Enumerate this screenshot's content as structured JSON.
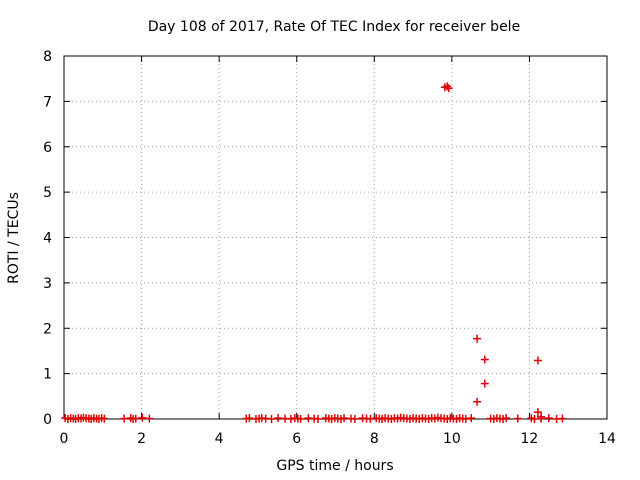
{
  "chart_data": {
    "type": "scatter",
    "title": "Day 108 of 2017, Rate Of TEC Index for receiver bele",
    "xlabel": "GPS time / hours",
    "ylabel": "ROTI / TECUs",
    "xlim": [
      0,
      14
    ],
    "ylim": [
      0,
      8
    ],
    "xticks": [
      "0",
      "2",
      "4",
      "6",
      "8",
      "10",
      "12",
      "14"
    ],
    "yticks": [
      "0",
      "1",
      "2",
      "3",
      "4",
      "5",
      "6",
      "7",
      "8"
    ],
    "grid": true,
    "marker": "+",
    "color": "#e00000",
    "series": [
      {
        "points": [
          [
            0.03,
            0.02
          ],
          [
            0.1,
            0.0
          ],
          [
            0.17,
            0.02
          ],
          [
            0.24,
            0.01
          ],
          [
            0.3,
            0.0
          ],
          [
            0.37,
            0.02
          ],
          [
            0.44,
            0.01
          ],
          [
            0.5,
            0.03
          ],
          [
            0.57,
            0.02
          ],
          [
            0.64,
            0.01
          ],
          [
            0.7,
            0.0
          ],
          [
            0.77,
            0.02
          ],
          [
            0.84,
            0.01
          ],
          [
            0.9,
            0.0
          ],
          [
            0.97,
            0.02
          ],
          [
            1.04,
            0.01
          ],
          [
            1.55,
            0.01
          ],
          [
            1.72,
            0.02
          ],
          [
            1.78,
            0.0
          ],
          [
            1.85,
            0.01
          ],
          [
            2.02,
            0.03
          ],
          [
            2.2,
            0.01
          ],
          [
            4.7,
            0.01
          ],
          [
            4.78,
            0.02
          ],
          [
            4.95,
            0.0
          ],
          [
            5.03,
            0.01
          ],
          [
            5.1,
            0.02
          ],
          [
            5.2,
            0.01
          ],
          [
            5.35,
            0.0
          ],
          [
            5.52,
            0.02
          ],
          [
            5.7,
            0.01
          ],
          [
            5.85,
            0.0
          ],
          [
            5.95,
            0.02
          ],
          [
            6.03,
            0.01
          ],
          [
            6.1,
            0.0
          ],
          [
            6.3,
            0.02
          ],
          [
            6.45,
            0.01
          ],
          [
            6.55,
            0.0
          ],
          [
            6.75,
            0.02
          ],
          [
            6.83,
            0.01
          ],
          [
            6.9,
            0.0
          ],
          [
            6.98,
            0.02
          ],
          [
            7.06,
            0.01
          ],
          [
            7.14,
            0.0
          ],
          [
            7.22,
            0.02
          ],
          [
            7.4,
            0.01
          ],
          [
            7.5,
            0.0
          ],
          [
            7.7,
            0.02
          ],
          [
            7.8,
            0.01
          ],
          [
            7.9,
            0.0
          ],
          [
            8.05,
            0.02
          ],
          [
            8.13,
            0.01
          ],
          [
            8.2,
            0.0
          ],
          [
            8.28,
            0.02
          ],
          [
            8.36,
            0.01
          ],
          [
            8.44,
            0.0
          ],
          [
            8.52,
            0.02
          ],
          [
            8.6,
            0.01
          ],
          [
            8.68,
            0.03
          ],
          [
            8.76,
            0.02
          ],
          [
            8.84,
            0.01
          ],
          [
            8.92,
            0.0
          ],
          [
            9.0,
            0.02
          ],
          [
            9.08,
            0.01
          ],
          [
            9.16,
            0.0
          ],
          [
            9.24,
            0.02
          ],
          [
            9.32,
            0.01
          ],
          [
            9.4,
            0.0
          ],
          [
            9.48,
            0.02
          ],
          [
            9.56,
            0.01
          ],
          [
            9.64,
            0.03
          ],
          [
            9.72,
            0.02
          ],
          [
            9.8,
            0.01
          ],
          [
            9.88,
            0.0
          ],
          [
            9.96,
            0.02
          ],
          [
            10.04,
            0.01
          ],
          [
            10.12,
            0.0
          ],
          [
            10.2,
            0.02
          ],
          [
            10.28,
            0.01
          ],
          [
            10.36,
            0.0
          ],
          [
            10.5,
            0.02
          ],
          [
            11.0,
            0.01
          ],
          [
            11.08,
            0.0
          ],
          [
            11.16,
            0.02
          ],
          [
            11.24,
            0.01
          ],
          [
            11.32,
            0.0
          ],
          [
            11.4,
            0.02
          ],
          [
            11.7,
            0.01
          ],
          [
            12.05,
            0.02
          ],
          [
            12.13,
            0.0
          ],
          [
            12.3,
            0.01
          ],
          [
            12.5,
            0.02
          ],
          [
            12.7,
            0.0
          ],
          [
            12.85,
            0.01
          ],
          [
            9.82,
            7.31
          ],
          [
            9.88,
            7.33
          ],
          [
            9.92,
            7.29
          ],
          [
            10.65,
            1.77
          ],
          [
            10.65,
            0.38
          ],
          [
            10.85,
            1.31
          ],
          [
            10.85,
            0.78
          ],
          [
            12.22,
            1.29
          ],
          [
            12.22,
            0.15
          ],
          [
            12.3,
            0.05
          ]
        ]
      }
    ]
  }
}
